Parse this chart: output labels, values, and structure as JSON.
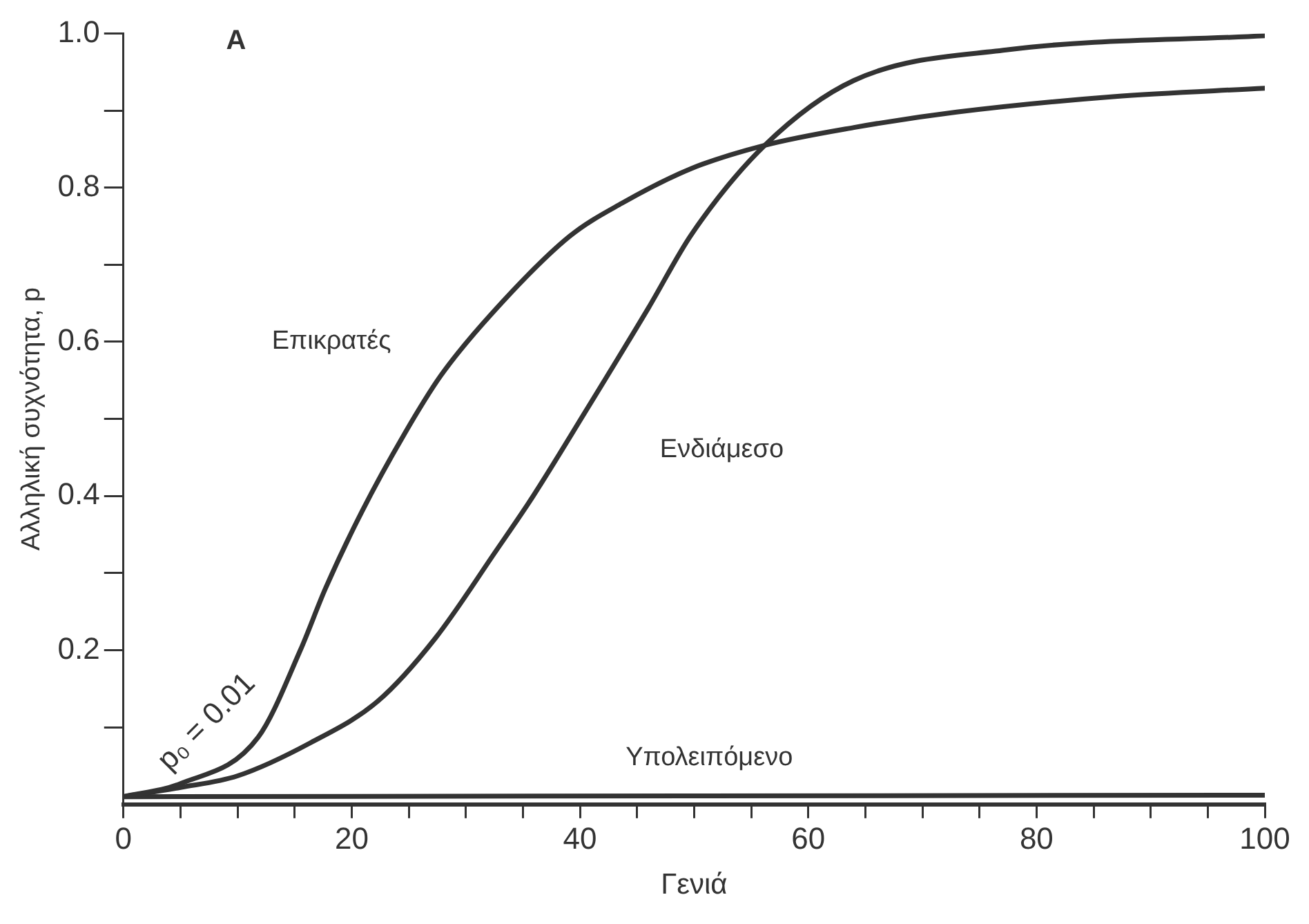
{
  "chart_data": {
    "type": "line",
    "xlabel": "Γενιά",
    "ylabel": "Αλληλική συχνότητα, p",
    "annotations": [
      "A",
      "p₀ = 0.01"
    ],
    "xlim": [
      0,
      100
    ],
    "xticks": [
      0,
      {
        "value": 5,
        "label": null
      },
      {
        "value": 10,
        "label": null
      },
      {
        "value": 15,
        "label": null
      },
      20,
      {
        "value": 25,
        "label": null
      },
      {
        "value": 30,
        "label": null
      },
      {
        "value": 35,
        "label": null
      },
      40,
      {
        "value": 45,
        "label": null
      },
      {
        "value": 50,
        "label": null
      },
      {
        "value": 55,
        "label": null
      },
      60,
      {
        "value": 65,
        "label": null
      },
      {
        "value": 70,
        "label": null
      },
      {
        "value": 75,
        "label": null
      },
      80,
      {
        "value": 85,
        "label": null
      },
      {
        "value": 90,
        "label": null
      },
      {
        "value": 95,
        "label": null
      },
      100
    ],
    "ylim": [
      0,
      1
    ],
    "yticks": [
      {
        "value": 0.1,
        "label": null
      },
      0.2,
      {
        "value": 0.3,
        "label": null
      },
      0.4,
      {
        "value": 0.5,
        "label": null
      },
      0.6,
      {
        "value": 0.7,
        "label": null
      },
      0.8,
      {
        "value": 0.9,
        "label": null
      },
      {
        "value": 1,
        "label": "1.0"
      }
    ],
    "grid": false,
    "legend": false,
    "marker": "none",
    "line_style": "solid",
    "series": [
      {
        "name": "Επικρατές",
        "color": "#333333",
        "x": [
          0,
          5,
          11.8,
          15.5,
          17.7,
          20.9,
          24.6,
          27.8,
          32.3,
          39.1,
          43.7,
          49.8,
          56.2,
          64,
          73,
          86.7,
          100
        ],
        "values": [
          0.01,
          0.027,
          0.087,
          0.2,
          0.28,
          0.38,
          0.48,
          0.556,
          0.637,
          0.737,
          0.78,
          0.825,
          0.855,
          0.878,
          0.898,
          0.918,
          0.929
        ]
      },
      {
        "name": "Ενδιάμεσο",
        "color": "#333333",
        "x": [
          0,
          5,
          10,
          16.4,
          22.3,
          27.3,
          32.7,
          35.9,
          40.5,
          46,
          49.8,
          56.2,
          64,
          77.6,
          100
        ],
        "values": [
          0.01,
          0.022,
          0.037,
          0.08,
          0.134,
          0.215,
          0.33,
          0.4,
          0.51,
          0.644,
          0.74,
          0.855,
          0.939,
          0.979,
          0.997
        ]
      },
      {
        "name": "Υπολειπόμενο",
        "color": "#333333",
        "x": [
          0,
          50,
          100
        ],
        "values": [
          0.01,
          0.011,
          0.012
        ]
      }
    ]
  }
}
